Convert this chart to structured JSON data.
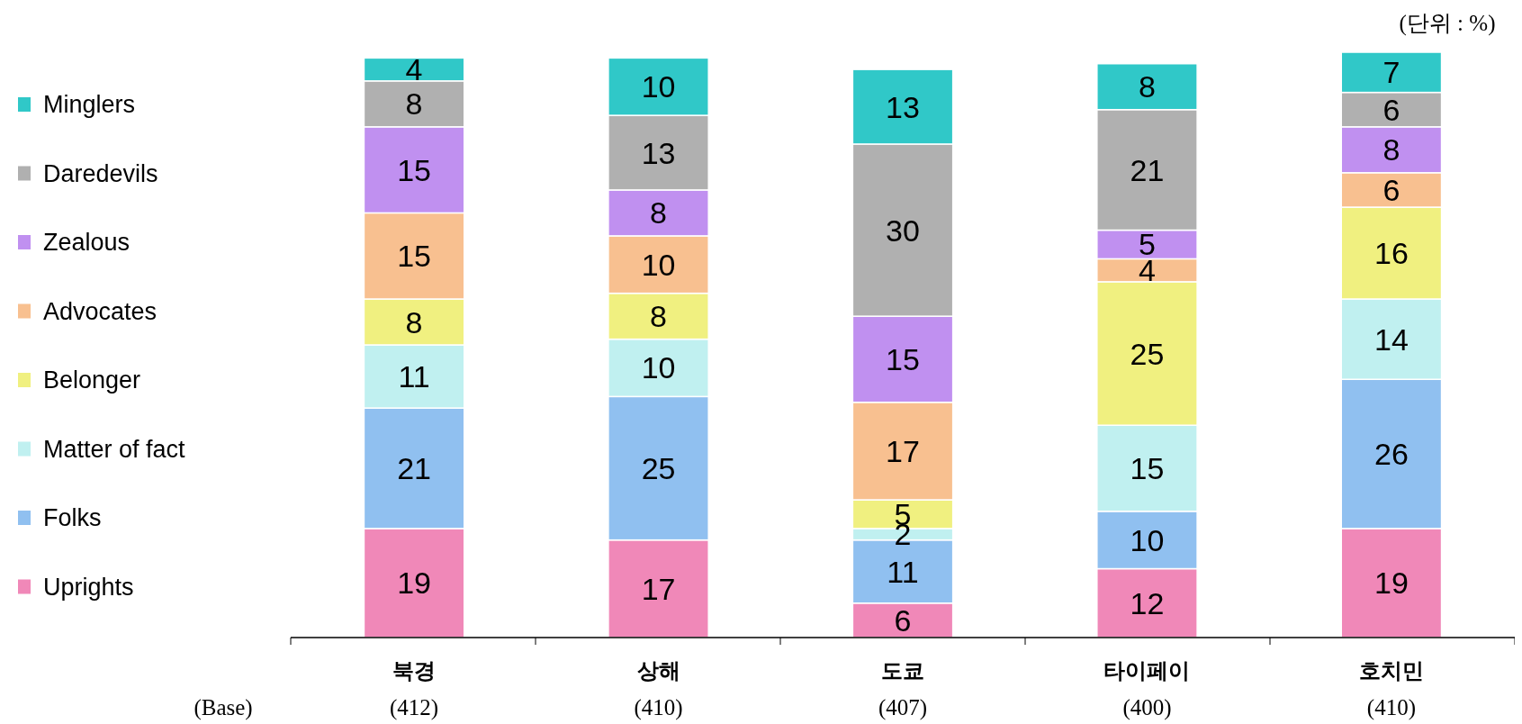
{
  "chart_data": {
    "type": "bar",
    "stacked": true,
    "data_labels": true,
    "legend": "left",
    "categories": [
      "북경",
      "상해",
      "도쿄",
      "타이페이",
      "호치민"
    ],
    "series": [
      {
        "name": "Uprights",
        "color": "#f088b8",
        "values": [
          19,
          17,
          6,
          12,
          19
        ]
      },
      {
        "name": "Folks",
        "color": "#90c0f0",
        "values": [
          21,
          25,
          11,
          10,
          26
        ]
      },
      {
        "name": "Matter of fact",
        "color": "#c0f0f0",
        "values": [
          11,
          10,
          2,
          15,
          14
        ]
      },
      {
        "name": "Belonger",
        "color": "#f0f080",
        "values": [
          8,
          8,
          5,
          25,
          16
        ]
      },
      {
        "name": "Advocates",
        "color": "#f8c090",
        "values": [
          15,
          10,
          17,
          4,
          6
        ]
      },
      {
        "name": "Zealous",
        "color": "#c090f0",
        "values": [
          15,
          8,
          15,
          5,
          8
        ]
      },
      {
        "name": "Daredevils",
        "color": "#b0b0b0",
        "values": [
          8,
          13,
          30,
          21,
          6
        ]
      },
      {
        "name": "Minglers",
        "color": "#30c8c8",
        "values": [
          4,
          10,
          13,
          8,
          7
        ]
      }
    ],
    "annotations": [
      "(단위 : %)",
      "(Base)",
      "(412)",
      "(410)",
      "(407)",
      "(400)",
      "(410)"
    ]
  }
}
